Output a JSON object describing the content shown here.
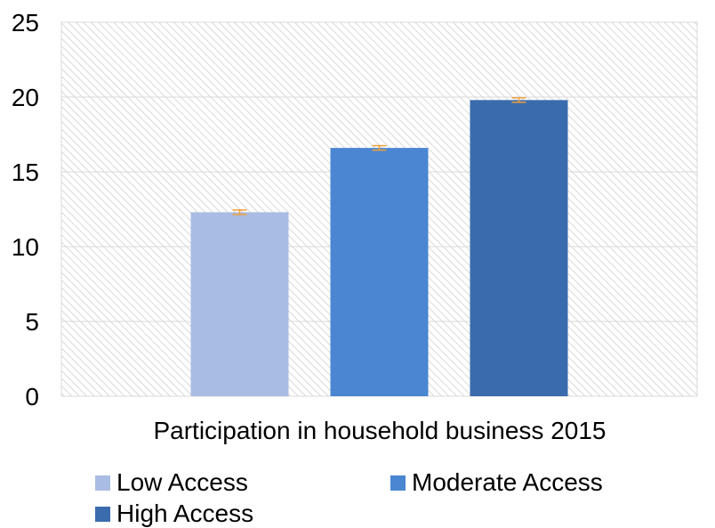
{
  "chart_data": {
    "type": "bar",
    "title": "",
    "xlabel": "Participation in household business 2015",
    "ylabel": "",
    "ylim": [
      0,
      25
    ],
    "yticks": [
      0,
      5,
      10,
      15,
      20,
      25
    ],
    "grid": true,
    "legend_position": "bottom",
    "series": [
      {
        "name": "Low Access",
        "value": 12.3,
        "error": 0.15,
        "color": "#a9bce3"
      },
      {
        "name": "Moderate Access",
        "value": 16.6,
        "error": 0.15,
        "color": "#4a86d1"
      },
      {
        "name": "High Access",
        "value": 19.8,
        "error": 0.15,
        "color": "#3a6cad"
      }
    ],
    "error_bar_color": "#f0a03c",
    "plot_background": "hatched-light-grey"
  }
}
